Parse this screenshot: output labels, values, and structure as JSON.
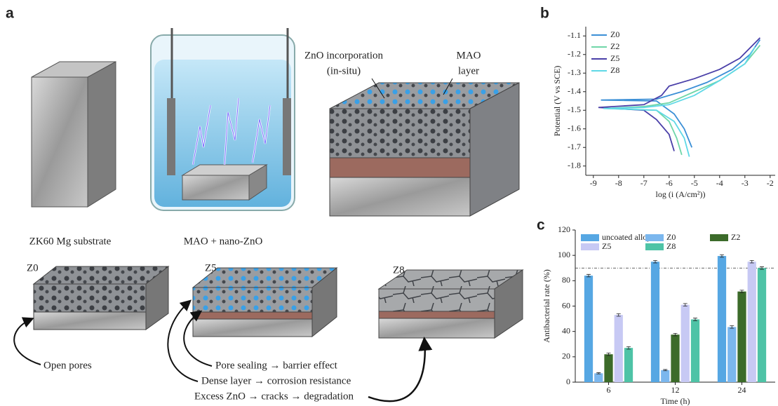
{
  "panel_a": {
    "label": "a",
    "substrate_label": "ZK60 Mg substrate",
    "bath_label": "MAO + nano-ZnO",
    "zno_label": [
      "ZnO incorporation",
      "(in-situ)"
    ],
    "mao_label": [
      "MAO",
      "layer"
    ],
    "samples": [
      "Z0",
      "Z5",
      "Z8"
    ],
    "notes": [
      "Open pores",
      "Pore sealing → barrier effect",
      "Dense layer → corrosion resistance",
      "Excess ZnO → cracks → degradation"
    ]
  },
  "chart_data": [
    {
      "type": "line",
      "panel_label": "b",
      "x_label": "log (i (A/cm²))",
      "y_label": "Potential (V vs SCE)",
      "xlim": [
        -9.3,
        -1.8
      ],
      "xticks": [
        -9,
        -8,
        -7,
        -6,
        -5,
        -4,
        -3,
        -2
      ],
      "ylim": [
        -1.85,
        -1.05
      ],
      "yticks": [
        -1.1,
        -1.2,
        -1.3,
        -1.4,
        -1.5,
        -1.6,
        -1.7,
        -1.8
      ],
      "series": [
        {
          "name": "Z0",
          "color": "#3b8fd6",
          "x": [
            -5.1,
            -5.4,
            -5.8,
            -6.5,
            -8.7,
            -6.5,
            -5.5,
            -4.5,
            -3.5,
            -2.8,
            -2.4
          ],
          "values": [
            -1.7,
            -1.6,
            -1.52,
            -1.45,
            -1.445,
            -1.44,
            -1.4,
            -1.35,
            -1.28,
            -1.2,
            -1.12
          ]
        },
        {
          "name": "Z2",
          "color": "#6fd6a8",
          "x": [
            -5.5,
            -5.7,
            -6.0,
            -6.5,
            -8.5,
            -7.0,
            -6.0,
            -5.0,
            -4.0,
            -3.0,
            -2.4
          ],
          "values": [
            -1.74,
            -1.65,
            -1.56,
            -1.5,
            -1.49,
            -1.48,
            -1.46,
            -1.4,
            -1.34,
            -1.25,
            -1.15
          ]
        },
        {
          "name": "Z5",
          "color": "#4a3fa8",
          "x": [
            -5.8,
            -6.0,
            -6.5,
            -7.0,
            -8.8,
            -7.0,
            -6.3,
            -6.0,
            -5.0,
            -4.0,
            -3.2,
            -2.4
          ],
          "values": [
            -1.72,
            -1.63,
            -1.55,
            -1.5,
            -1.485,
            -1.47,
            -1.42,
            -1.37,
            -1.33,
            -1.28,
            -1.22,
            -1.11
          ]
        },
        {
          "name": "Z8",
          "color": "#5fd8e6",
          "x": [
            -5.2,
            -5.4,
            -5.8,
            -6.5,
            -8.6,
            -7.0,
            -6.0,
            -5.0,
            -4.0,
            -3.0,
            -2.6
          ],
          "values": [
            -1.75,
            -1.65,
            -1.56,
            -1.5,
            -1.49,
            -1.485,
            -1.47,
            -1.42,
            -1.34,
            -1.25,
            -1.16
          ]
        }
      ]
    },
    {
      "type": "bar",
      "panel_label": "c",
      "x_label": "Time (h)",
      "y_label": "Antibacterial rate (%)",
      "categories": [
        "6",
        "12",
        "24"
      ],
      "ylim": [
        0,
        120
      ],
      "yticks": [
        0,
        20,
        40,
        60,
        80,
        100,
        120
      ],
      "reference_line": 90,
      "series": [
        {
          "name": "uncoated alloy",
          "color": "#56a7e3",
          "values": [
            84,
            95,
            99.5
          ],
          "errors": [
            1,
            1,
            1
          ]
        },
        {
          "name": "Z0",
          "color": "#7bb7ee",
          "values": [
            7,
            9.5,
            43.5
          ],
          "errors": [
            0.5,
            0.5,
            1
          ]
        },
        {
          "name": "Z2",
          "color": "#3c6b2a",
          "values": [
            22,
            37.5,
            71.5
          ],
          "errors": [
            1,
            1,
            1
          ]
        },
        {
          "name": "Z5",
          "color": "#c7c9f4",
          "values": [
            53,
            61,
            95
          ],
          "errors": [
            1,
            1,
            1
          ]
        },
        {
          "name": "Z8",
          "color": "#4ec3a6",
          "values": [
            27,
            49.5,
            90
          ],
          "errors": [
            1,
            1,
            1
          ]
        }
      ]
    }
  ]
}
